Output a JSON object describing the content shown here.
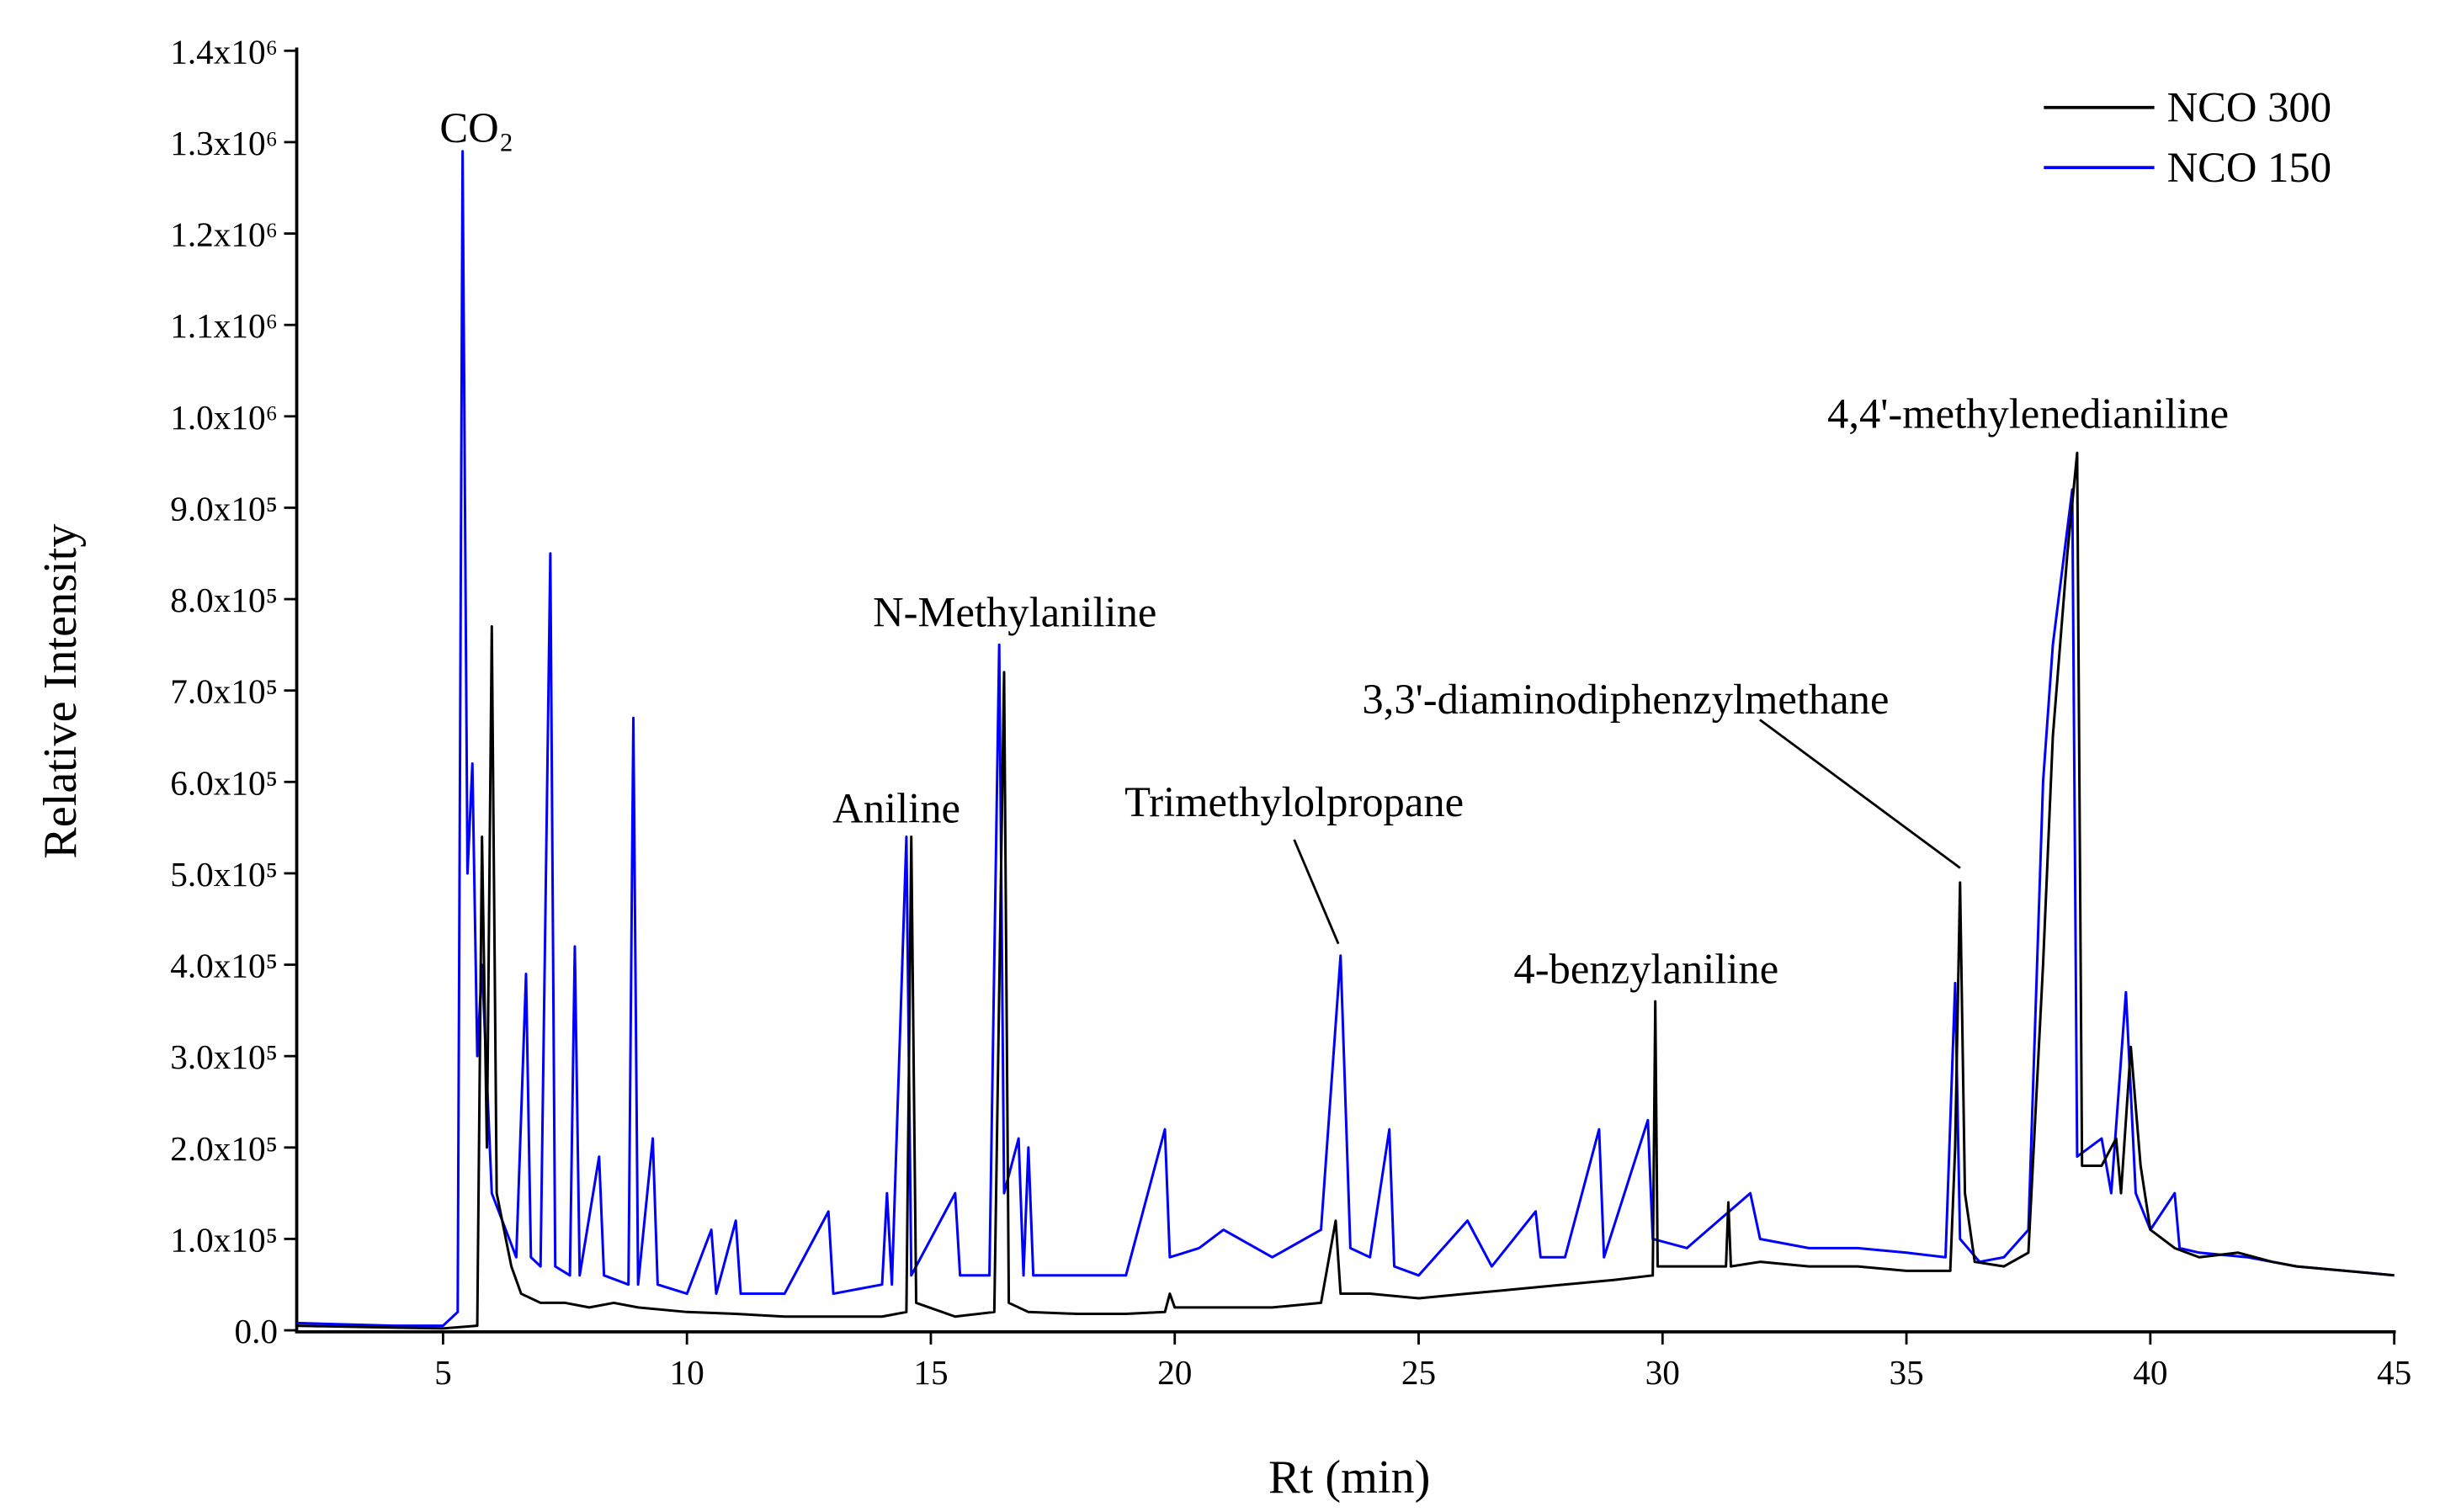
{
  "chart_data": {
    "type": "line",
    "xlabel": "Rt (min)",
    "ylabel": "Relative Intensity",
    "xlim": [
      2,
      45
    ],
    "ylim": [
      0,
      1400000
    ],
    "xticks": [
      5,
      10,
      15,
      20,
      25,
      30,
      35,
      40,
      45
    ],
    "yticks": [
      {
        "value": 0,
        "label": "0.0"
      },
      {
        "value": 100000,
        "label": "1.0x10⁵"
      },
      {
        "value": 200000,
        "label": "2.0x10⁵"
      },
      {
        "value": 300000,
        "label": "3.0x10⁵"
      },
      {
        "value": 400000,
        "label": "4.0x10⁵"
      },
      {
        "value": 500000,
        "label": "5.0x10⁵"
      },
      {
        "value": 600000,
        "label": "6.0x10⁵"
      },
      {
        "value": 700000,
        "label": "7.0x10⁵"
      },
      {
        "value": 800000,
        "label": "8.0x10⁵"
      },
      {
        "value": 900000,
        "label": "9.0x10⁵"
      },
      {
        "value": 1000000,
        "label": "1.0x10⁶"
      },
      {
        "value": 1100000,
        "label": "1.1x10⁶"
      },
      {
        "value": 1200000,
        "label": "1.2x10⁶"
      },
      {
        "value": 1300000,
        "label": "1.3x10⁶"
      },
      {
        "value": 1400000,
        "label": "1.4x10⁶"
      }
    ],
    "legend": "upper right",
    "annotations": [
      "CO₂",
      "Aniline",
      "N-Methylaniline",
      "Trimethylolpropane",
      "4-benzylaniline",
      "3,3'-diaminodiphenzylmethane",
      "4,4'-methylenedianiline"
    ],
    "series": [
      {
        "name": "NCO 300",
        "color": "#000000",
        "x": [
          2.0,
          4.0,
          5.0,
          5.7,
          5.8,
          5.9,
          6.0,
          6.1,
          6.4,
          6.6,
          7.0,
          7.5,
          8.0,
          8.5,
          9.0,
          10,
          11,
          12,
          13,
          14,
          14.5,
          14.6,
          14.7,
          15.5,
          16.3,
          16.5,
          16.6,
          17,
          18,
          19,
          19.8,
          19.9,
          20,
          21,
          22,
          23,
          23.3,
          23.4,
          24,
          25,
          26,
          27,
          28,
          29,
          29.8,
          29.85,
          29.9,
          30.5,
          31.3,
          31.35,
          31.4,
          32,
          33,
          34,
          35,
          35.9,
          36.0,
          36.1,
          36.2,
          36.4,
          37,
          37.5,
          37.8,
          38,
          38.3,
          38.5,
          38.6,
          39,
          39.3,
          39.4,
          39.6,
          39.8,
          40,
          40.5,
          41,
          41.8,
          42.5,
          43,
          44,
          45
        ],
        "values": [
          5000,
          3000,
          2000,
          5000,
          540000,
          200000,
          770000,
          150000,
          70000,
          40000,
          30000,
          30000,
          25000,
          30000,
          25000,
          20000,
          18000,
          15000,
          15000,
          15000,
          20000,
          540000,
          30000,
          15000,
          20000,
          720000,
          30000,
          20000,
          18000,
          18000,
          20000,
          40000,
          25000,
          25000,
          25000,
          30000,
          120000,
          40000,
          40000,
          35000,
          40000,
          45000,
          50000,
          55000,
          60000,
          360000,
          70000,
          70000,
          70000,
          140000,
          70000,
          75000,
          70000,
          70000,
          65000,
          65000,
          200000,
          490000,
          150000,
          75000,
          70000,
          85000,
          400000,
          650000,
          850000,
          960000,
          180000,
          180000,
          210000,
          150000,
          310000,
          180000,
          110000,
          90000,
          80000,
          85000,
          75000,
          70000,
          65000,
          60000
        ]
      },
      {
        "name": "NCO 150",
        "color": "#0000ff",
        "x": [
          2.0,
          4.0,
          5.0,
          5.3,
          5.4,
          5.5,
          5.6,
          5.7,
          5.8,
          6.0,
          6.5,
          6.7,
          6.8,
          7.0,
          7.2,
          7.3,
          7.6,
          7.7,
          7.8,
          8.2,
          8.3,
          8.8,
          8.9,
          9.0,
          9.3,
          9.4,
          10,
          10.5,
          10.6,
          11,
          11.1,
          12,
          12.9,
          13,
          14,
          14.1,
          14.2,
          14.5,
          14.6,
          15.5,
          15.6,
          16.2,
          16.4,
          16.5,
          16.8,
          16.9,
          17,
          17.1,
          18,
          19,
          19.8,
          19.9,
          20.5,
          21,
          22,
          23,
          23.4,
          23.6,
          24,
          24.4,
          24.5,
          25,
          26,
          26.5,
          27.4,
          27.5,
          28,
          28.7,
          28.8,
          29.7,
          29.8,
          30.5,
          31.8,
          32,
          33,
          34,
          35,
          35.8,
          36,
          36.1,
          36.5,
          37,
          37.5,
          37.8,
          38,
          38.4,
          38.5,
          39,
          39.2,
          39.5,
          39.7,
          40,
          40.5,
          40.6,
          41,
          42,
          43,
          44,
          45
        ],
        "values": [
          8000,
          5000,
          5000,
          20000,
          1290000,
          500000,
          620000,
          300000,
          400000,
          150000,
          80000,
          390000,
          80000,
          70000,
          850000,
          70000,
          60000,
          420000,
          60000,
          190000,
          60000,
          50000,
          670000,
          50000,
          210000,
          50000,
          40000,
          110000,
          40000,
          120000,
          40000,
          40000,
          130000,
          40000,
          50000,
          150000,
          50000,
          540000,
          60000,
          150000,
          60000,
          60000,
          750000,
          150000,
          210000,
          60000,
          200000,
          60000,
          60000,
          60000,
          220000,
          80000,
          90000,
          110000,
          80000,
          110000,
          410000,
          90000,
          80000,
          220000,
          70000,
          60000,
          120000,
          70000,
          130000,
          80000,
          80000,
          220000,
          80000,
          230000,
          100000,
          90000,
          150000,
          100000,
          90000,
          90000,
          85000,
          80000,
          380000,
          100000,
          75000,
          80000,
          110000,
          600000,
          750000,
          920000,
          190000,
          210000,
          150000,
          370000,
          150000,
          110000,
          150000,
          90000,
          85000,
          80000,
          70000,
          65000,
          60000
        ]
      }
    ]
  }
}
